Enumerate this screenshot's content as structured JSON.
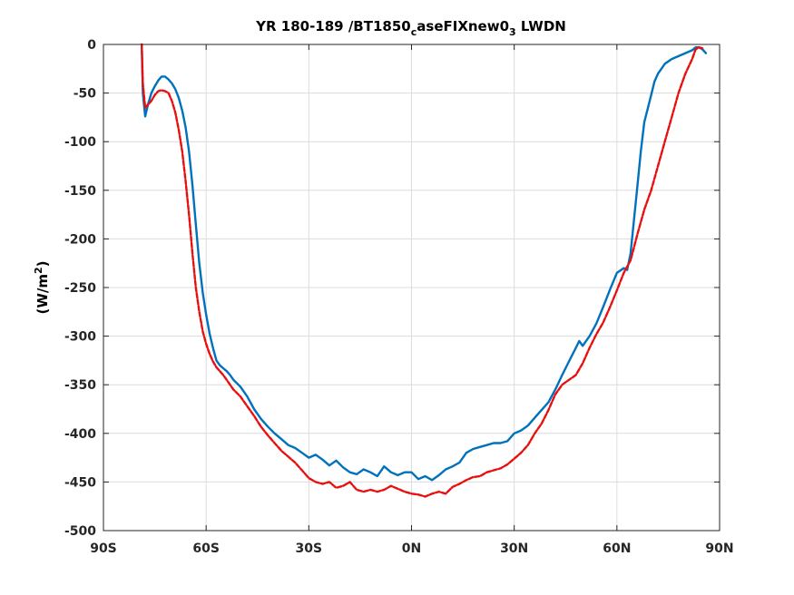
{
  "chart_data": {
    "type": "line",
    "title": {
      "part1": "YR 180-189 /BT1850",
      "sub1": "c",
      "part2": "aseFIXnew0",
      "sub2": "3",
      "part3": " LWDN"
    },
    "xlabel": "",
    "ylabel": {
      "base": "(W/m",
      "sup": "2",
      "close": ")"
    },
    "xlim": [
      -90,
      90
    ],
    "ylim": [
      -500,
      0
    ],
    "x_ticks": [
      -90,
      -60,
      -30,
      0,
      30,
      60,
      90
    ],
    "x_tick_labels": [
      "90S",
      "60S",
      "30S",
      "0N",
      "30N",
      "60N",
      "90N"
    ],
    "y_ticks": [
      0,
      -50,
      -100,
      -150,
      -200,
      -250,
      -300,
      -350,
      -400,
      -450,
      -500
    ],
    "y_tick_labels": [
      "0",
      "-50",
      "-100",
      "-150",
      "-200",
      "-250",
      "-300",
      "-350",
      "-400",
      "-450",
      "-500"
    ],
    "grid": true,
    "series": [
      {
        "color": "#0072BD",
        "line_style": "solid",
        "x": [
          -78.8,
          -78.5,
          -77.8,
          -77,
          -76,
          -75,
          -74,
          -73,
          -72,
          -71,
          -70,
          -69,
          -68,
          -67,
          -66,
          -65,
          -64,
          -63,
          -62,
          -61,
          -60,
          -59,
          -58,
          -57,
          -56,
          -55,
          -54,
          -53,
          -52,
          -50,
          -48,
          -46,
          -44,
          -42,
          -40,
          -38,
          -36,
          -34,
          -32,
          -30,
          -28,
          -26,
          -24,
          -22,
          -20,
          -18,
          -16,
          -14,
          -12,
          -10,
          -8,
          -6,
          -4,
          -2,
          0,
          2,
          4,
          6,
          8,
          10,
          12,
          14,
          16,
          18,
          20,
          22,
          24,
          26,
          28,
          30,
          32,
          34,
          36,
          38,
          40,
          42,
          44,
          46,
          48,
          49,
          50,
          52,
          54,
          56,
          58,
          60,
          62,
          63,
          64,
          65,
          66,
          67,
          68,
          69,
          70,
          71,
          72,
          73,
          74,
          76,
          78,
          80,
          82,
          83,
          84,
          85,
          86
        ],
        "y": [
          0,
          -50,
          -74,
          -62,
          -50,
          -43,
          -37,
          -33,
          -33,
          -36,
          -40,
          -46,
          -55,
          -68,
          -85,
          -110,
          -145,
          -185,
          -225,
          -255,
          -278,
          -297,
          -312,
          -325,
          -330,
          -333,
          -336,
          -340,
          -345,
          -352,
          -362,
          -375,
          -385,
          -393,
          -400,
          -406,
          -412,
          -415,
          -420,
          -425,
          -422,
          -427,
          -433,
          -428,
          -435,
          -440,
          -442,
          -437,
          -440,
          -444,
          -434,
          -440,
          -443,
          -440,
          -440,
          -447,
          -444,
          -448,
          -443,
          -437,
          -434,
          -430,
          -420,
          -416,
          -414,
          -412,
          -410,
          -410,
          -408,
          -400,
          -397,
          -392,
          -384,
          -376,
          -368,
          -355,
          -340,
          -326,
          -312,
          -305,
          -310,
          -300,
          -287,
          -270,
          -252,
          -235,
          -230,
          -232,
          -215,
          -180,
          -145,
          -110,
          -80,
          -66,
          -52,
          -38,
          -30,
          -25,
          -20,
          -15,
          -12,
          -9,
          -6,
          -3,
          -3,
          -5,
          -9
        ]
      },
      {
        "color": "#E8100F",
        "line_style": "dashed",
        "x": [
          -78.8,
          -78.5,
          -77.8,
          -77,
          -76,
          -75,
          -74,
          -73,
          -72,
          -71,
          -70,
          -69,
          -68,
          -67,
          -66,
          -65,
          -64,
          -63,
          -62,
          -61,
          -60,
          -59,
          -58,
          -57,
          -56,
          -55,
          -54,
          -52,
          -50,
          -48,
          -46,
          -44,
          -42,
          -40,
          -38,
          -36,
          -34,
          -32,
          -30,
          -28,
          -26,
          -24,
          -22,
          -20,
          -18,
          -16,
          -14,
          -12,
          -10,
          -8,
          -6,
          -4,
          -2,
          0,
          2,
          4,
          6,
          8,
          10,
          12,
          14,
          16,
          18,
          20,
          22,
          24,
          26,
          28,
          30,
          32,
          34,
          36,
          38,
          40,
          42,
          44,
          46,
          48,
          50,
          52,
          54,
          56,
          58,
          60,
          62,
          64,
          66,
          68,
          70,
          72,
          74,
          76,
          78,
          80,
          82,
          83,
          84,
          85
        ],
        "y": [
          0,
          -40,
          -65,
          -62,
          -58,
          -52,
          -48,
          -47,
          -48,
          -50,
          -58,
          -70,
          -88,
          -110,
          -140,
          -175,
          -215,
          -250,
          -275,
          -295,
          -308,
          -318,
          -326,
          -332,
          -336,
          -340,
          -345,
          -355,
          -362,
          -372,
          -382,
          -393,
          -402,
          -410,
          -418,
          -424,
          -430,
          -438,
          -446,
          -450,
          -452,
          -450,
          -456,
          -454,
          -450,
          -458,
          -460,
          -458,
          -460,
          -458,
          -454,
          -457,
          -460,
          -462,
          -463,
          -465,
          -462,
          -460,
          -462,
          -455,
          -452,
          -448,
          -445,
          -444,
          -440,
          -438,
          -436,
          -432,
          -426,
          -420,
          -412,
          -400,
          -390,
          -376,
          -360,
          -350,
          -345,
          -340,
          -328,
          -312,
          -298,
          -286,
          -270,
          -253,
          -235,
          -222,
          -195,
          -170,
          -150,
          -125,
          -100,
          -75,
          -50,
          -30,
          -15,
          -5,
          -3,
          -4
        ]
      }
    ]
  }
}
